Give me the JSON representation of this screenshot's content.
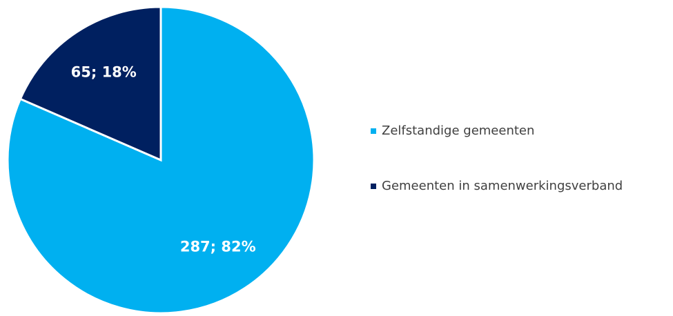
{
  "chart_data": {
    "type": "pie",
    "categories": [
      "Zelfstandige gemeenten",
      "Gemeenten in samenwerkingsverband"
    ],
    "values": [
      287,
      65
    ],
    "value_labels": [
      "287; 82%",
      "65; 18%"
    ],
    "colors": [
      "#00b0f0",
      "#002060"
    ],
    "legend": "right"
  }
}
